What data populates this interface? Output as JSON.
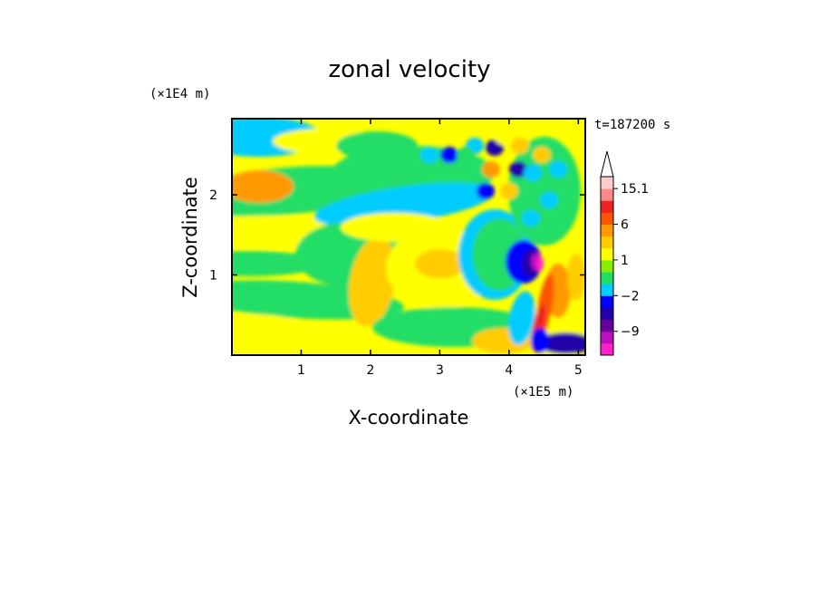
{
  "chart_data": {
    "type": "heatmap",
    "title": "zonal velocity",
    "xlabel": "X-coordinate",
    "ylabel": "Z-coordinate",
    "x_units": "(×1E5 m)",
    "y_units": "(×1E4 m)",
    "time_label": "t=187200 s",
    "xlim": [
      0,
      5.1
    ],
    "ylim": [
      0,
      2.95
    ],
    "x_ticks": [
      "1",
      "2",
      "3",
      "4",
      "5"
    ],
    "x_tick_values": [
      1,
      2,
      3,
      4,
      5
    ],
    "y_ticks": [
      "1",
      "2"
    ],
    "y_tick_values": [
      1,
      2
    ],
    "colorbar": {
      "levels": [
        -15,
        -12,
        -9,
        -6,
        -3,
        -2,
        -1,
        0,
        1,
        2,
        3,
        6,
        9,
        12,
        15.1
      ],
      "colors": [
        "#ff22cc",
        "#bb11bb",
        "#660099",
        "#2200aa",
        "#0000ff",
        "#00ccff",
        "#22dd66",
        "#88ee00",
        "#ffff00",
        "#ffcc00",
        "#ff9900",
        "#ff5500",
        "#ee2222",
        "#ff8888",
        "#ffcccc"
      ],
      "labels": [
        "15.1",
        "6",
        "1",
        "−2",
        "−9"
      ],
      "label_values": [
        15.1,
        6,
        1,
        -2,
        -9
      ],
      "extend_max": true
    },
    "features": [
      {
        "x": 4.1,
        "z": 1.15,
        "value": -9
      },
      {
        "x": 4.3,
        "z": 1.2,
        "value": -15
      },
      {
        "x": 4.5,
        "z": 0.2,
        "value": -9
      },
      {
        "x": 4.6,
        "z": 0.7,
        "value": 6
      },
      {
        "x": 3.7,
        "z": 2.6,
        "value": -6
      },
      {
        "x": 4.1,
        "z": 2.3,
        "value": -6
      },
      {
        "x": 3.0,
        "z": 2.5,
        "value": -6
      },
      {
        "x": 3.9,
        "z": 2.4,
        "value": 3
      },
      {
        "x": 3.2,
        "z": 1.1,
        "value": 2
      },
      {
        "x": 0.3,
        "z": 2.1,
        "value": 2
      }
    ]
  }
}
